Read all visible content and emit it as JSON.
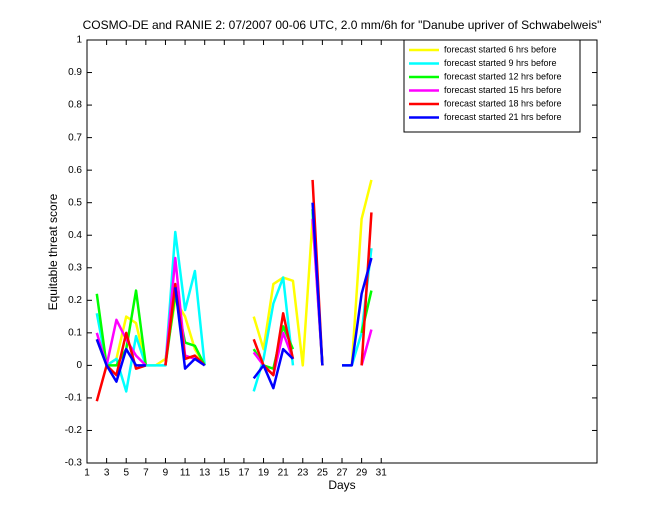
{
  "chart_data": {
    "type": "line",
    "title": "COSMO-DE and RANIE 2: 07/2007 00-06 UTC, 2.0 mm/6h for \"Danube upriver of Schwabelweis\"",
    "xlabel": "Days",
    "ylabel": "Equitable threat score",
    "x": [
      1,
      2,
      3,
      4,
      5,
      6,
      7,
      8,
      9,
      10,
      11,
      12,
      13,
      14,
      15,
      16,
      17,
      18,
      19,
      20,
      21,
      22,
      23,
      24,
      25,
      26,
      27,
      28,
      29,
      30,
      31
    ],
    "series": [
      {
        "name": "forecast started 6 hrs before",
        "color": "#ffff00",
        "values": [
          null,
          0.08,
          0,
          0.02,
          0.15,
          0.13,
          0,
          0,
          0.02,
          0.2,
          0.15,
          0.05,
          0,
          null,
          null,
          null,
          null,
          0.15,
          0.05,
          0.25,
          0.27,
          0.26,
          0,
          0.45,
          0,
          null,
          null,
          0,
          0.45,
          0.57,
          null
        ]
      },
      {
        "name": "forecast started 9 hrs before",
        "color": "#00ffff",
        "values": [
          null,
          0.16,
          0,
          0.02,
          -0.08,
          0.09,
          0,
          0,
          0,
          0.41,
          0.17,
          0.29,
          0,
          null,
          null,
          null,
          null,
          -0.08,
          0.02,
          0.19,
          0.27,
          0,
          null,
          0.47,
          0,
          null,
          0,
          0,
          0.1,
          0.36,
          null
        ]
      },
      {
        "name": "forecast started 12 hrs before",
        "color": "#00ff00",
        "values": [
          null,
          0.22,
          0,
          0,
          0.05,
          0.23,
          0,
          null,
          0,
          0.22,
          0.07,
          0.06,
          0,
          null,
          null,
          null,
          null,
          0.05,
          0,
          -0.01,
          0.12,
          0.05,
          null,
          0.48,
          0,
          null,
          null,
          null,
          0.1,
          0.23,
          null
        ]
      },
      {
        "name": "forecast started 15 hrs before",
        "color": "#ff00ff",
        "values": [
          null,
          0.1,
          0,
          0.14,
          0.08,
          0.03,
          0,
          null,
          0,
          0.33,
          0.03,
          0.02,
          0,
          null,
          null,
          null,
          null,
          0.04,
          0,
          -0.03,
          0.1,
          0.02,
          null,
          0.45,
          0,
          null,
          null,
          null,
          0,
          0.11,
          null
        ]
      },
      {
        "name": "forecast started 18 hrs before",
        "color": "#ff0000",
        "values": [
          null,
          -0.11,
          0,
          -0.03,
          0.1,
          -0.01,
          0,
          null,
          0,
          0.25,
          0.02,
          0.03,
          0,
          null,
          null,
          null,
          null,
          0.08,
          0,
          -0.03,
          0.16,
          0.02,
          null,
          0.57,
          0,
          null,
          null,
          null,
          0,
          0.47,
          null
        ]
      },
      {
        "name": "forecast started 21 hrs before",
        "color": "#0000ff",
        "values": [
          null,
          0.08,
          0,
          -0.05,
          0.05,
          0,
          0,
          null,
          null,
          0.24,
          -0.01,
          0.02,
          0,
          null,
          null,
          null,
          null,
          -0.04,
          0,
          -0.07,
          0.05,
          0.02,
          null,
          0.5,
          0,
          null,
          0,
          0,
          0.22,
          0.33,
          null
        ]
      }
    ],
    "xlim": [
      1,
      53
    ],
    "xticks": [
      1,
      3,
      5,
      7,
      9,
      11,
      13,
      15,
      17,
      19,
      21,
      23,
      25,
      27,
      29,
      31
    ],
    "ylim": [
      -0.3,
      1
    ],
    "yticks": [
      -0.3,
      -0.2,
      -0.1,
      0,
      0.1,
      0.2,
      0.3,
      0.4,
      0.5,
      0.6,
      0.7,
      0.8,
      0.9,
      1
    ],
    "legend": "upper right",
    "grid": false
  }
}
